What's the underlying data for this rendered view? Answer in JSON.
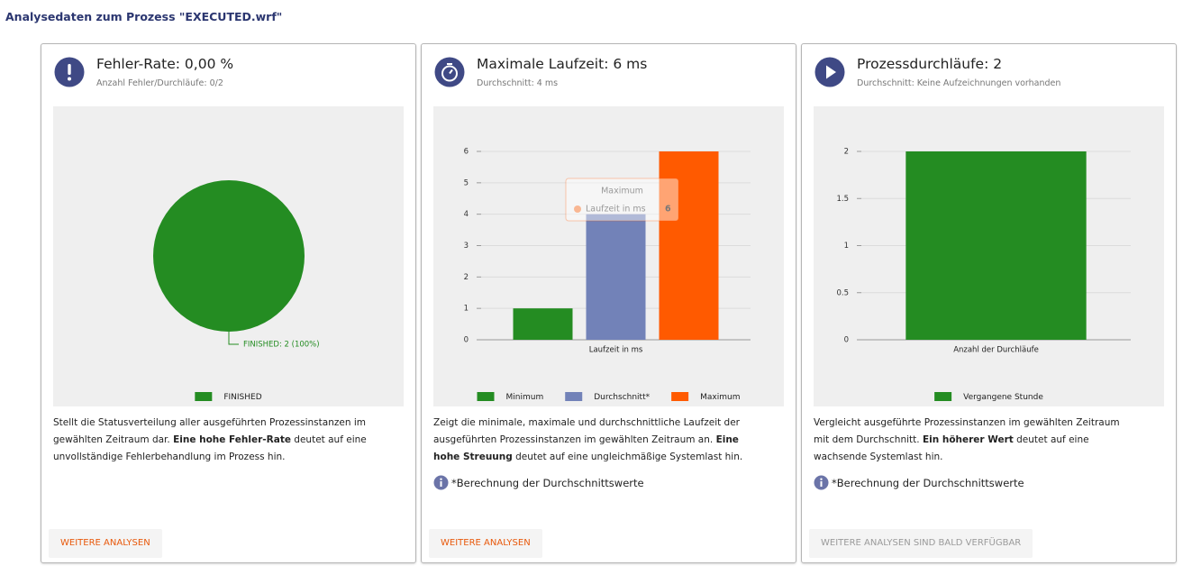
{
  "header": {
    "title": "Analysedaten zum Prozess \"EXECUTED.wrf\""
  },
  "cards": [
    {
      "title": "Fehler-Rate: 0,00 %",
      "subtitle": "Anzahl Fehler/Durchläufe: 0/2",
      "chart": {
        "type": "pie",
        "categories": [
          "FINISHED"
        ],
        "values": [
          2
        ],
        "value_labels": [
          "FINISHED: 2 (100%)"
        ],
        "colors": [
          "#248c22"
        ]
      },
      "description": [
        {
          "text": "Stellt die Statusverteilung aller ausgeführten Prozessinstanzen im gewählten Zeitraum dar. ",
          "bold": false
        },
        {
          "text": "Eine hohe Fehler-Rate",
          "bold": true
        },
        {
          "text": " deutet auf eine unvollständige Fehlerbehandlung im Prozess hin.",
          "bold": false
        }
      ],
      "button": {
        "label": "WEITERE ANALYSEN",
        "enabled": true
      }
    },
    {
      "title": "Maximale Laufzeit: 6 ms",
      "subtitle": "Durchschnitt: 4 ms",
      "chart": {
        "type": "bar",
        "categories": [
          "Laufzeit in ms"
        ],
        "series": [
          {
            "name": "Minimum",
            "color": "#248c22",
            "values": [
              1
            ]
          },
          {
            "name": "Durchschnitt*",
            "color": "#7282b8",
            "values": [
              4
            ]
          },
          {
            "name": "Maximum",
            "color": "#ff5a00",
            "values": [
              6
            ]
          }
        ],
        "ylim": [
          0,
          6
        ],
        "yticks": [
          0,
          1,
          2,
          3,
          4,
          5,
          6
        ],
        "grid": true,
        "tooltip": {
          "title": "Maximum",
          "label": "Laufzeit in ms",
          "value": "6"
        }
      },
      "description": [
        {
          "text": "Zeigt die minimale, maximale und durchschnittliche Laufzeit der ausgeführten Prozessinstanzen im gewählten Zeitraum an. ",
          "bold": false
        },
        {
          "text": "Eine hohe Streuung",
          "bold": true
        },
        {
          "text": " deutet auf eine ungleichmäßige Systemlast hin.",
          "bold": false
        }
      ],
      "note": "*Berechnung der Durchschnittswerte",
      "button": {
        "label": "WEITERE ANALYSEN",
        "enabled": true
      }
    },
    {
      "title": "Prozessdurchläufe: 2",
      "subtitle": "Durchschnitt: Keine Aufzeichnungen vorhanden",
      "chart": {
        "type": "bar",
        "categories": [
          "Anzahl der Durchläufe"
        ],
        "series": [
          {
            "name": "Vergangene Stunde",
            "color": "#248c22",
            "values": [
              2
            ]
          }
        ],
        "ylim": [
          0,
          2
        ],
        "yticks": [
          0,
          0.5,
          1,
          1.5,
          2
        ],
        "grid": true
      },
      "description": [
        {
          "text": "Vergleicht ausgeführte Prozessinstanzen im gewählten Zeitraum mit dem Durchschnitt. ",
          "bold": false
        },
        {
          "text": "Ein höherer Wert",
          "bold": true
        },
        {
          "text": " deutet auf eine wachsende Systemlast hin.",
          "bold": false
        }
      ],
      "note": "*Berechnung der Durchschnittswerte",
      "button": {
        "label": "WEITERE ANALYSEN SIND BALD VERFÜGBAR",
        "enabled": false
      }
    }
  ]
}
